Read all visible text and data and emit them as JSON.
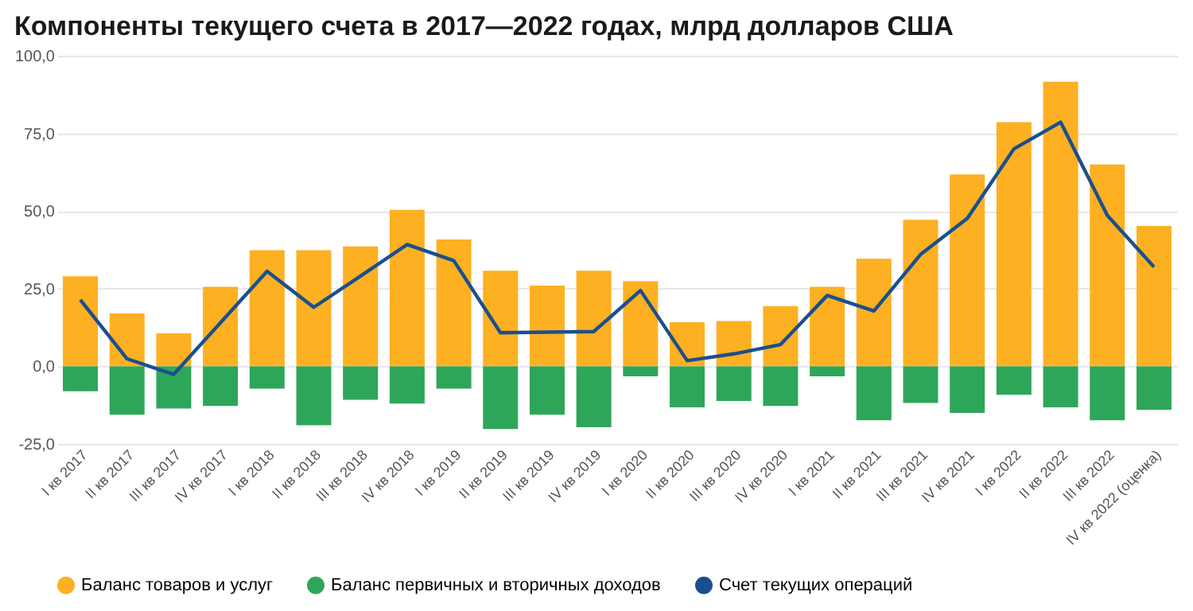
{
  "chart_data": {
    "type": "bar",
    "title": "Компоненты текущего счета в 2017—2022 годах, млрд долларов США",
    "categories": [
      "I кв 2017",
      "II кв 2017",
      "III кв 2017",
      "IV кв 2017",
      "I кв 2018",
      "II кв 2018",
      "III кв 2018",
      "IV кв 2018",
      "I кв 2019",
      "II кв 2019",
      "III кв 2019",
      "IV кв 2019",
      "I кв 2020",
      "II кв 2020",
      "III кв 2020",
      "IV кв 2020",
      "I кв 2021",
      "II кв 2021",
      "III кв 2021",
      "IV кв 2021",
      "I кв 2022",
      "II кв 2022",
      "III кв 2022",
      "IV кв 2022 (оценка)"
    ],
    "stacked": true,
    "series": [
      {
        "name": "Баланс товаров и услуг",
        "color": "#fdb022",
        "values": [
          29.0,
          17.0,
          10.6,
          25.6,
          37.4,
          37.4,
          38.6,
          50.4,
          40.8,
          30.8,
          26.0,
          30.8,
          27.4,
          14.2,
          14.6,
          19.4,
          25.6,
          34.6,
          47.2,
          61.8,
          78.6,
          91.6,
          65.0,
          45.2
        ]
      },
      {
        "name": "Баланс первичных и вторичных доходов",
        "color": "#2ea65a",
        "values": [
          -8.0,
          -15.6,
          -13.6,
          -12.8,
          -7.2,
          -19.0,
          -10.8,
          -12.0,
          -7.2,
          -20.2,
          -15.6,
          -19.6,
          -3.2,
          -13.2,
          -11.2,
          -12.8,
          -3.2,
          -17.4,
          -11.8,
          -15.0,
          -9.2,
          -13.2,
          -17.4,
          -14.0
        ]
      },
      {
        "name": "Счет текущих операций",
        "color": "#1a4f8f",
        "type": "line",
        "values": [
          21.4,
          2.4,
          -2.6,
          14.0,
          30.6,
          19.0,
          29.0,
          39.2,
          34.0,
          10.8,
          11.0,
          11.2,
          24.4,
          1.8,
          4.0,
          7.0,
          22.8,
          17.8,
          36.0,
          47.6,
          70.0,
          78.6,
          48.6,
          32.0
        ]
      }
    ],
    "ylim": [
      -25,
      100
    ],
    "yticks": [
      {
        "value": -25,
        "label": "-25,0"
      },
      {
        "value": 0,
        "label": "0,0"
      },
      {
        "value": 25,
        "label": "25,0"
      },
      {
        "value": 50,
        "label": "50,0"
      },
      {
        "value": 75,
        "label": "75,0"
      },
      {
        "value": 100,
        "label": "100,0"
      }
    ],
    "grid": "y",
    "legend": "bottom left",
    "marker": "none",
    "line_style": "solid"
  }
}
